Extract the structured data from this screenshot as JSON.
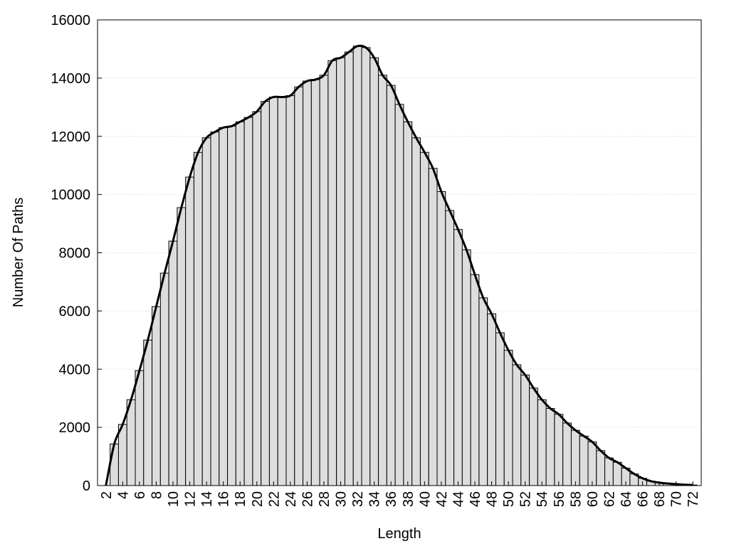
{
  "chart_data": {
    "type": "histogram-line",
    "x_label": "Length",
    "y_label": "Number Of Paths",
    "x": [
      2,
      3,
      4,
      5,
      6,
      7,
      8,
      9,
      10,
      11,
      12,
      13,
      14,
      15,
      16,
      17,
      18,
      19,
      20,
      21,
      22,
      23,
      24,
      25,
      26,
      27,
      28,
      29,
      30,
      31,
      32,
      33,
      34,
      35,
      36,
      37,
      38,
      39,
      40,
      41,
      42,
      43,
      44,
      45,
      46,
      47,
      48,
      49,
      50,
      51,
      52,
      53,
      54,
      55,
      56,
      57,
      58,
      59,
      60,
      61,
      62,
      63,
      64,
      65,
      66,
      67,
      68,
      69,
      70,
      71,
      72
    ],
    "values": [
      0,
      1430,
      2100,
      2950,
      3950,
      5000,
      6150,
      7300,
      8400,
      9550,
      10600,
      11450,
      11950,
      12150,
      12300,
      12350,
      12500,
      12650,
      12850,
      13200,
      13350,
      13350,
      13400,
      13700,
      13900,
      13950,
      14100,
      14600,
      14700,
      14900,
      15100,
      15050,
      14700,
      14100,
      13750,
      13100,
      12500,
      11950,
      11450,
      10900,
      10100,
      9450,
      8800,
      8100,
      7250,
      6450,
      5900,
      5250,
      4650,
      4150,
      3800,
      3350,
      2950,
      2650,
      2450,
      2150,
      1900,
      1700,
      1500,
      1200,
      950,
      800,
      600,
      400,
      250,
      150,
      100,
      70,
      50,
      30,
      20
    ],
    "bar_color": "#dddddd",
    "line_color": "#000000",
    "xlim": [
      1,
      73
    ],
    "xticks": [
      2,
      4,
      6,
      8,
      10,
      12,
      14,
      16,
      18,
      20,
      22,
      24,
      26,
      28,
      30,
      32,
      34,
      36,
      38,
      40,
      42,
      44,
      46,
      48,
      50,
      52,
      54,
      56,
      58,
      60,
      62,
      64,
      66,
      68,
      70,
      72
    ],
    "ylim": [
      0,
      16000
    ],
    "yticks": [
      0,
      2000,
      4000,
      6000,
      8000,
      10000,
      12000,
      14000,
      16000
    ],
    "grid": true
  }
}
